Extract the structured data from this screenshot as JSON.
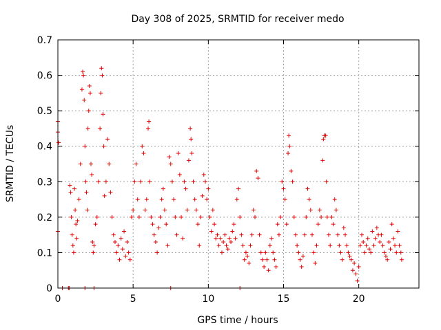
{
  "chart_data": {
    "type": "scatter",
    "title": "Day 308 of 2025, SRMTID for receiver medo",
    "xlabel": "GPS time / hours",
    "ylabel": "SRMTID / TECUs",
    "xlim": [
      0,
      24
    ],
    "ylim": [
      0,
      0.7
    ],
    "xticks": [
      0,
      5,
      10,
      15,
      20
    ],
    "xtick_labels": [
      "0",
      "5",
      "10",
      "15",
      "20"
    ],
    "yticks": [
      0,
      0.1,
      0.2,
      0.3,
      0.4,
      0.5,
      0.6,
      0.7
    ],
    "ytick_labels": [
      "0",
      "0.1",
      "0.2",
      "0.3",
      "0.4",
      "0.5",
      "0.6",
      "0.7"
    ],
    "grid": true,
    "marker": "+",
    "color": "#e00000",
    "series": [
      {
        "name": "SRMTID",
        "points": [
          [
            0.0,
            0.47
          ],
          [
            0.0,
            0.44
          ],
          [
            0.05,
            0.41
          ],
          [
            0.0,
            0.16
          ],
          [
            0.3,
            0.0
          ],
          [
            0.7,
            0.0
          ],
          [
            0.75,
            0.0
          ],
          [
            0.8,
            0.29
          ],
          [
            0.85,
            0.27
          ],
          [
            0.9,
            0.2
          ],
          [
            0.95,
            0.15
          ],
          [
            1.0,
            0.12
          ],
          [
            1.05,
            0.1
          ],
          [
            1.1,
            0.28
          ],
          [
            1.15,
            0.22
          ],
          [
            1.2,
            0.18
          ],
          [
            1.25,
            0.14
          ],
          [
            1.3,
            0.19
          ],
          [
            1.4,
            0.25
          ],
          [
            1.5,
            0.35
          ],
          [
            1.6,
            0.56
          ],
          [
            1.65,
            0.61
          ],
          [
            1.7,
            0.6
          ],
          [
            1.75,
            0.53
          ],
          [
            1.8,
            0.4
          ],
          [
            1.85,
            0.3
          ],
          [
            1.9,
            0.27
          ],
          [
            1.95,
            0.22
          ],
          [
            2.0,
            0.45
          ],
          [
            2.05,
            0.5
          ],
          [
            2.1,
            0.57
          ],
          [
            2.15,
            0.55
          ],
          [
            2.2,
            0.35
          ],
          [
            2.25,
            0.32
          ],
          [
            2.3,
            0.13
          ],
          [
            2.35,
            0.1
          ],
          [
            2.4,
            0.12
          ],
          [
            2.5,
            0.18
          ],
          [
            2.6,
            0.2
          ],
          [
            2.7,
            0.3
          ],
          [
            2.8,
            0.45
          ],
          [
            2.85,
            0.55
          ],
          [
            2.9,
            0.62
          ],
          [
            2.95,
            0.6
          ],
          [
            3.0,
            0.49
          ],
          [
            3.05,
            0.4
          ],
          [
            3.1,
            0.26
          ],
          [
            3.2,
            0.3
          ],
          [
            3.3,
            0.42
          ],
          [
            3.4,
            0.35
          ],
          [
            3.5,
            0.27
          ],
          [
            3.6,
            0.2
          ],
          [
            3.7,
            0.15
          ],
          [
            3.8,
            0.13
          ],
          [
            3.9,
            0.1
          ],
          [
            4.0,
            0.12
          ],
          [
            4.1,
            0.08
          ],
          [
            4.2,
            0.14
          ],
          [
            4.3,
            0.11
          ],
          [
            4.4,
            0.16
          ],
          [
            4.5,
            0.09
          ],
          [
            4.6,
            0.13
          ],
          [
            4.7,
            0.1
          ],
          [
            4.8,
            0.08
          ],
          [
            4.9,
            0.2
          ],
          [
            5.0,
            0.22
          ],
          [
            5.1,
            0.3
          ],
          [
            5.2,
            0.35
          ],
          [
            5.3,
            0.25
          ],
          [
            5.4,
            0.2
          ],
          [
            5.5,
            0.3
          ],
          [
            5.6,
            0.4
          ],
          [
            5.7,
            0.38
          ],
          [
            5.8,
            0.22
          ],
          [
            5.9,
            0.25
          ],
          [
            6.0,
            0.45
          ],
          [
            6.05,
            0.47
          ],
          [
            6.1,
            0.3
          ],
          [
            6.2,
            0.2
          ],
          [
            6.3,
            0.18
          ],
          [
            6.4,
            0.15
          ],
          [
            6.5,
            0.13
          ],
          [
            6.6,
            0.1
          ],
          [
            6.7,
            0.17
          ],
          [
            6.8,
            0.2
          ],
          [
            6.9,
            0.25
          ],
          [
            7.0,
            0.28
          ],
          [
            7.1,
            0.22
          ],
          [
            7.2,
            0.18
          ],
          [
            7.3,
            0.12
          ],
          [
            7.4,
            0.37
          ],
          [
            7.5,
            0.35
          ],
          [
            7.6,
            0.3
          ],
          [
            7.7,
            0.25
          ],
          [
            7.8,
            0.2
          ],
          [
            7.9,
            0.15
          ],
          [
            8.0,
            0.38
          ],
          [
            8.1,
            0.32
          ],
          [
            8.2,
            0.2
          ],
          [
            8.3,
            0.14
          ],
          [
            8.4,
            0.3
          ],
          [
            8.5,
            0.28
          ],
          [
            8.6,
            0.22
          ],
          [
            8.7,
            0.36
          ],
          [
            8.8,
            0.45
          ],
          [
            8.85,
            0.42
          ],
          [
            8.9,
            0.38
          ],
          [
            9.0,
            0.3
          ],
          [
            9.1,
            0.25
          ],
          [
            9.2,
            0.22
          ],
          [
            9.3,
            0.18
          ],
          [
            9.4,
            0.12
          ],
          [
            9.5,
            0.2
          ],
          [
            9.6,
            0.26
          ],
          [
            9.7,
            0.32
          ],
          [
            9.8,
            0.3
          ],
          [
            9.9,
            0.25
          ],
          [
            10.0,
            0.28
          ],
          [
            10.1,
            0.2
          ],
          [
            10.2,
            0.16
          ],
          [
            10.3,
            0.22
          ],
          [
            10.4,
            0.18
          ],
          [
            10.5,
            0.14
          ],
          [
            10.6,
            0.15
          ],
          [
            10.7,
            0.12
          ],
          [
            10.8,
            0.14
          ],
          [
            10.9,
            0.1
          ],
          [
            11.0,
            0.13
          ],
          [
            11.1,
            0.15
          ],
          [
            11.2,
            0.12
          ],
          [
            11.3,
            0.11
          ],
          [
            11.4,
            0.14
          ],
          [
            11.5,
            0.13
          ],
          [
            11.6,
            0.16
          ],
          [
            11.7,
            0.18
          ],
          [
            11.8,
            0.14
          ],
          [
            11.9,
            0.25
          ],
          [
            12.0,
            0.28
          ],
          [
            12.1,
            0.2
          ],
          [
            12.2,
            0.15
          ],
          [
            12.3,
            0.12
          ],
          [
            12.4,
            0.08
          ],
          [
            12.5,
            0.1
          ],
          [
            12.6,
            0.09
          ],
          [
            12.7,
            0.07
          ],
          [
            12.8,
            0.12
          ],
          [
            12.9,
            0.15
          ],
          [
            13.0,
            0.22
          ],
          [
            13.1,
            0.2
          ],
          [
            13.2,
            0.33
          ],
          [
            13.3,
            0.31
          ],
          [
            13.4,
            0.15
          ],
          [
            13.5,
            0.1
          ],
          [
            13.6,
            0.08
          ],
          [
            13.7,
            0.06
          ],
          [
            13.8,
            0.1
          ],
          [
            13.9,
            0.08
          ],
          [
            14.0,
            0.05
          ],
          [
            14.1,
            0.12
          ],
          [
            14.2,
            0.14
          ],
          [
            14.3,
            0.1
          ],
          [
            14.4,
            0.08
          ],
          [
            14.5,
            0.06
          ],
          [
            14.6,
            0.18
          ],
          [
            14.7,
            0.15
          ],
          [
            14.8,
            0.2
          ],
          [
            14.9,
            0.3
          ],
          [
            15.0,
            0.28
          ],
          [
            15.1,
            0.25
          ],
          [
            15.2,
            0.18
          ],
          [
            15.3,
            0.38
          ],
          [
            15.35,
            0.43
          ],
          [
            15.4,
            0.4
          ],
          [
            15.5,
            0.33
          ],
          [
            15.6,
            0.3
          ],
          [
            15.7,
            0.2
          ],
          [
            15.8,
            0.15
          ],
          [
            15.9,
            0.12
          ],
          [
            16.0,
            0.1
          ],
          [
            16.1,
            0.08
          ],
          [
            16.2,
            0.06
          ],
          [
            16.3,
            0.09
          ],
          [
            16.4,
            0.15
          ],
          [
            16.5,
            0.2
          ],
          [
            16.6,
            0.28
          ],
          [
            16.7,
            0.25
          ],
          [
            16.8,
            0.22
          ],
          [
            16.9,
            0.15
          ],
          [
            17.0,
            0.1
          ],
          [
            17.1,
            0.07
          ],
          [
            17.2,
            0.12
          ],
          [
            17.3,
            0.18
          ],
          [
            17.4,
            0.22
          ],
          [
            17.5,
            0.2
          ],
          [
            17.6,
            0.36
          ],
          [
            17.65,
            0.42
          ],
          [
            17.7,
            0.43
          ],
          [
            17.8,
            0.43
          ],
          [
            17.85,
            0.3
          ],
          [
            17.9,
            0.2
          ],
          [
            18.0,
            0.15
          ],
          [
            18.1,
            0.12
          ],
          [
            18.2,
            0.2
          ],
          [
            18.3,
            0.18
          ],
          [
            18.4,
            0.25
          ],
          [
            18.5,
            0.22
          ],
          [
            18.6,
            0.15
          ],
          [
            18.7,
            0.12
          ],
          [
            18.8,
            0.1
          ],
          [
            18.9,
            0.08
          ],
          [
            19.0,
            0.17
          ],
          [
            19.1,
            0.15
          ],
          [
            19.2,
            0.12
          ],
          [
            19.3,
            0.1
          ],
          [
            19.4,
            0.09
          ],
          [
            19.5,
            0.08
          ],
          [
            19.6,
            0.05
          ],
          [
            19.7,
            0.07
          ],
          [
            19.8,
            0.04
          ],
          [
            19.9,
            0.02
          ],
          [
            20.0,
            0.06
          ],
          [
            20.1,
            0.12
          ],
          [
            20.2,
            0.15
          ],
          [
            20.3,
            0.13
          ],
          [
            20.4,
            0.1
          ],
          [
            20.5,
            0.12
          ],
          [
            20.6,
            0.14
          ],
          [
            20.7,
            0.11
          ],
          [
            20.8,
            0.1
          ],
          [
            20.9,
            0.16
          ],
          [
            21.0,
            0.12
          ],
          [
            21.1,
            0.14
          ],
          [
            21.2,
            0.17
          ],
          [
            21.3,
            0.15
          ],
          [
            21.4,
            0.13
          ],
          [
            21.5,
            0.15
          ],
          [
            21.6,
            0.12
          ],
          [
            21.7,
            0.1
          ],
          [
            21.8,
            0.09
          ],
          [
            21.9,
            0.08
          ],
          [
            22.0,
            0.13
          ],
          [
            22.1,
            0.11
          ],
          [
            22.2,
            0.18
          ],
          [
            22.3,
            0.14
          ],
          [
            22.4,
            0.12
          ],
          [
            22.5,
            0.1
          ],
          [
            22.6,
            0.16
          ],
          [
            22.7,
            0.12
          ],
          [
            22.8,
            0.1
          ],
          [
            22.85,
            0.08
          ],
          [
            1.8,
            0.0
          ],
          [
            2.4,
            0.0
          ],
          [
            7.5,
            0.0
          ],
          [
            12.1,
            0.0
          ]
        ]
      }
    ]
  }
}
